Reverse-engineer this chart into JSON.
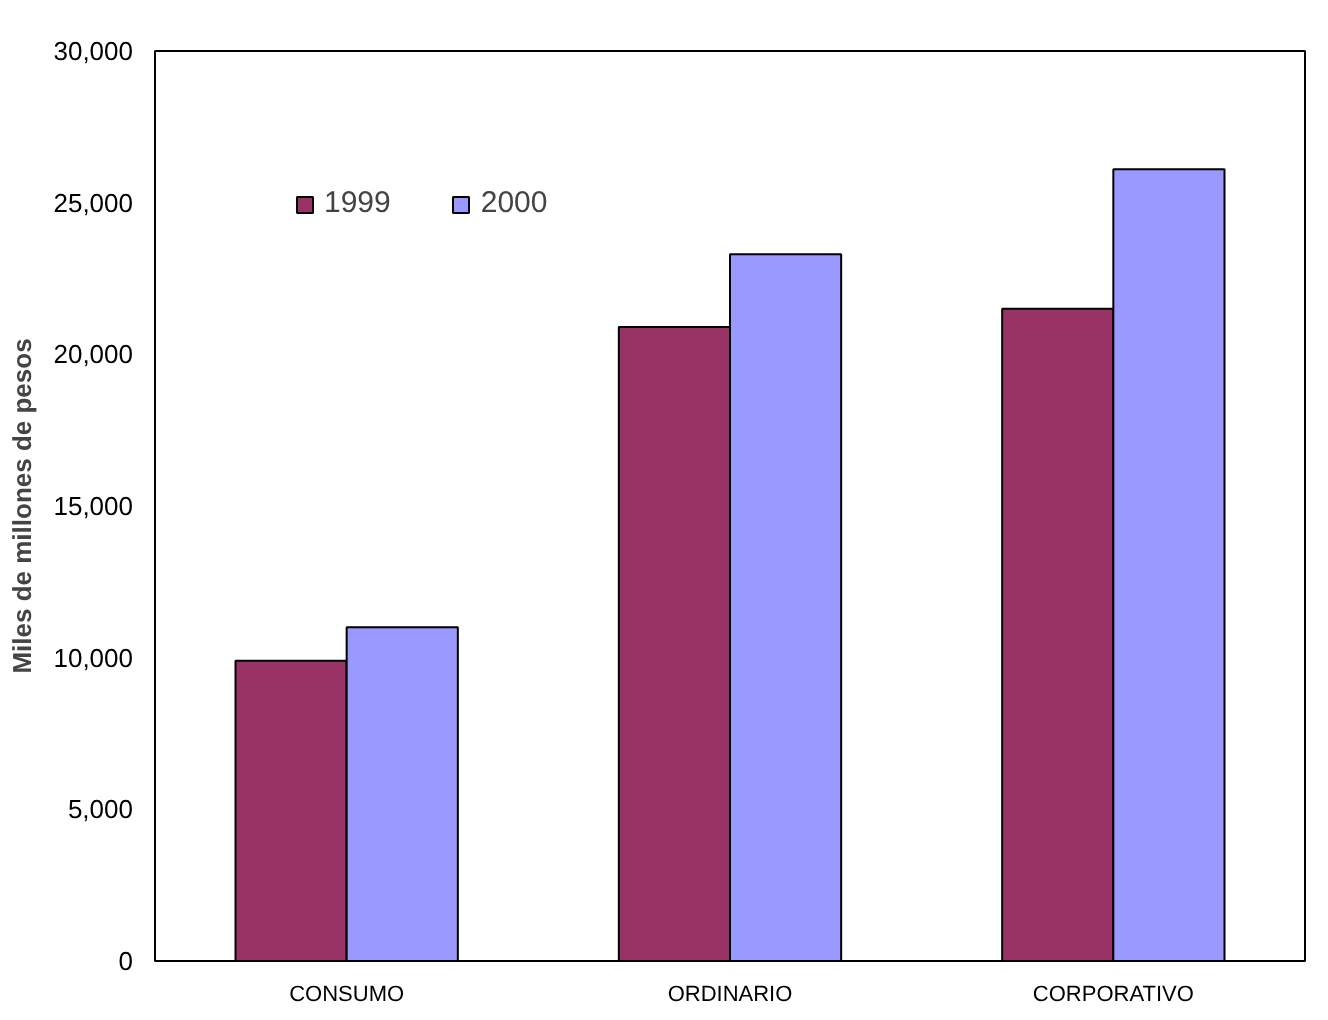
{
  "chart_data": {
    "type": "bar",
    "ylabel": "Miles de millones de pesos",
    "categories": [
      "CONSUMO",
      "ORDINARIO",
      "CORPORATIVO"
    ],
    "series": [
      {
        "name": "1999",
        "color": "#993366",
        "values": [
          9900,
          20900,
          21500
        ]
      },
      {
        "name": "2000",
        "color": "#9999ff",
        "values": [
          11000,
          23300,
          26100
        ]
      }
    ],
    "ylim": [
      0,
      30000
    ],
    "yticks": [
      {
        "value": 0,
        "label": "0"
      },
      {
        "value": 5000,
        "label": "5,000"
      },
      {
        "value": 10000,
        "label": "10,000"
      },
      {
        "value": 15000,
        "label": "15,000"
      },
      {
        "value": 20000,
        "label": "20,000"
      },
      {
        "value": 25000,
        "label": "25,000"
      },
      {
        "value": 30000,
        "label": "30,000"
      }
    ],
    "grid": false,
    "legend": "top left"
  }
}
